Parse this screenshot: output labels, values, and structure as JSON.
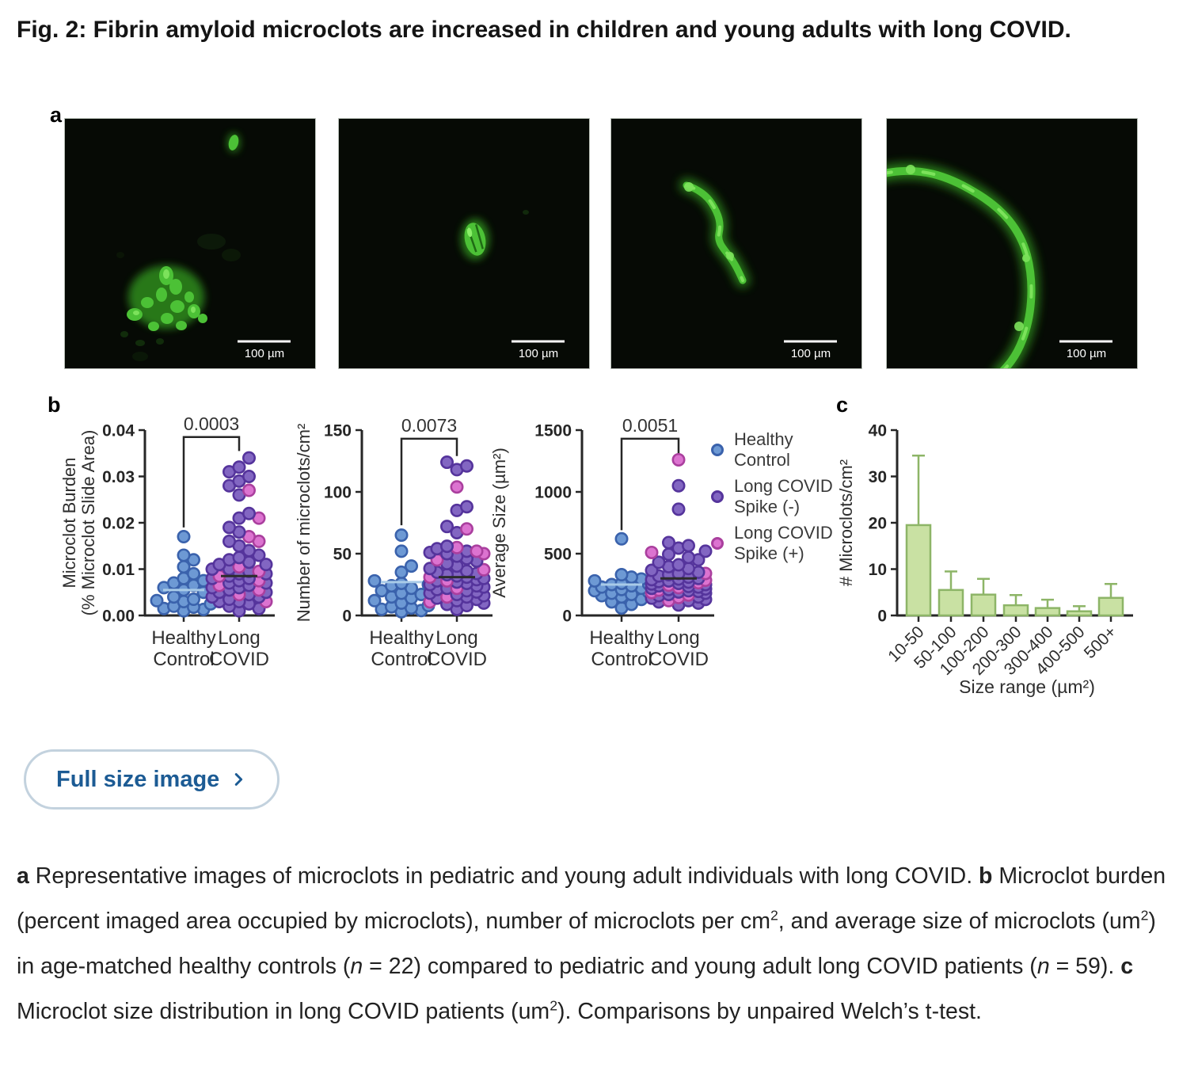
{
  "figure": {
    "title": "Fig. 2: Fibrin amyloid microclots are increased in children and young adults with long COVID.",
    "panel_labels": {
      "a": "a",
      "b": "b",
      "c": "c"
    },
    "scale_label": "100 µm",
    "button": {
      "label": "Full size image"
    },
    "legend": [
      {
        "group": "hc",
        "label_lines": [
          "Healthy",
          "Control"
        ]
      },
      {
        "group": "sn",
        "label_lines": [
          "Long COVID",
          "Spike (-)"
        ]
      },
      {
        "group": "sp",
        "label_lines": [
          "Long COVID",
          "Spike (+)"
        ]
      }
    ],
    "colors": {
      "hc_fill": "#6d99d4",
      "hc_stroke": "#3a62ac",
      "sn_fill": "#8266c2",
      "sn_stroke": "#55349c",
      "sp_fill": "#dc73d0",
      "sp_stroke": "#aa3f9e",
      "bar_fill": "#c9e1a3",
      "bar_stroke": "#8db567",
      "axis": "#262626",
      "mean_hc": "#a9cbe8",
      "mean_lc": "#2d2d2d",
      "accent_link": "#1c5b94",
      "button_border": "#c3d2de",
      "micro_green": "#4cc136"
    },
    "caption_segments": [
      {
        "t": "a",
        "b": 1
      },
      {
        "t": " Representative images of microclots in pediatric and young adult individuals with long COVID. "
      },
      {
        "t": "b",
        "b": 1
      },
      {
        "t": " Microclot burden (percent imaged area occupied by microclots), number of microclots per cm"
      },
      {
        "t": "2",
        "sup": 1
      },
      {
        "t": ", and average size of microclots (um"
      },
      {
        "t": "2",
        "sup": 1
      },
      {
        "t": ") in age-matched healthy controls ("
      },
      {
        "t": "n",
        "i": 1
      },
      {
        "t": " = 22) compared to pediatric and young adult long COVID patients ("
      },
      {
        "t": "n",
        "i": 1
      },
      {
        "t": " = 59). "
      },
      {
        "t": "c",
        "b": 1
      },
      {
        "t": " Microclot size distribution in long COVID patients (um"
      },
      {
        "t": "2",
        "sup": 1
      },
      {
        "t": "). Comparisons by unpaired Welch’s t-test."
      }
    ]
  },
  "chart_data": [
    {
      "type": "scatter",
      "p_value": "0.0003",
      "ylabel_lines": [
        "Microclot Burden",
        "(% Microclot Slide Area)"
      ],
      "ylim": [
        0,
        0.04
      ],
      "yticks": [
        0,
        0.01,
        0.02,
        0.03,
        0.04
      ],
      "ytick_labels": [
        "0.00",
        "0.01",
        "0.02",
        "0.03",
        "0.04"
      ],
      "categories": [
        [
          "Healthy",
          "Control"
        ],
        [
          "Long",
          "COVID"
        ]
      ],
      "n": {
        "healthy_control": 22,
        "long_covid": 59
      },
      "series": {
        "healthy_control": [
          0.001,
          0.0013,
          0.0015,
          0.0018,
          0.002,
          0.0025,
          0.003,
          0.0032,
          0.0035,
          0.004,
          0.005,
          0.0055,
          0.006,
          0.0065,
          0.007,
          0.0075,
          0.008,
          0.009,
          0.0105,
          0.012,
          0.013,
          0.017
        ],
        "long_covid_spike_neg": [
          0.001,
          0.0015,
          0.002,
          0.0025,
          0.003,
          0.003,
          0.0035,
          0.004,
          0.004,
          0.0045,
          0.005,
          0.005,
          0.0055,
          0.006,
          0.006,
          0.0065,
          0.007,
          0.007,
          0.0075,
          0.008,
          0.008,
          0.0085,
          0.009,
          0.009,
          0.0095,
          0.01,
          0.01,
          0.011,
          0.011,
          0.0115,
          0.012,
          0.0125,
          0.013,
          0.014,
          0.015,
          0.016,
          0.018,
          0.019,
          0.021,
          0.022,
          0.026,
          0.028,
          0.029,
          0.03,
          0.031,
          0.032,
          0.034
        ],
        "long_covid_spike_pos": [
          0.003,
          0.0045,
          0.0055,
          0.0065,
          0.0075,
          0.0085,
          0.0095,
          0.0105,
          0.016,
          0.017,
          0.021,
          0.027
        ]
      },
      "mean_lines": {
        "healthy": 0.0055,
        "long_covid": 0.0085
      },
      "bracket": {
        "top": 0.0385,
        "left_drop": 0.019,
        "right_drop": 0.0355
      }
    },
    {
      "type": "scatter",
      "p_value": "0.0073",
      "ylabel_lines": [
        "Number of microclots/cm²"
      ],
      "ylim": [
        0,
        150
      ],
      "yticks": [
        0,
        50,
        100,
        150
      ],
      "ytick_labels": [
        "0",
        "50",
        "100",
        "150"
      ],
      "categories": [
        [
          "Healthy",
          "Control"
        ],
        [
          "Long",
          "COVID"
        ]
      ],
      "series": {
        "healthy_control": [
          3,
          4,
          5,
          6,
          7,
          8,
          10,
          12,
          14,
          15,
          17,
          18,
          20,
          22,
          24,
          25,
          26,
          28,
          35,
          40,
          52,
          65
        ],
        "long_covid_spike_neg": [
          5,
          8,
          9,
          10,
          12,
          13,
          14,
          15,
          16,
          17,
          18,
          19,
          20,
          21,
          22,
          23,
          24,
          25,
          26,
          27,
          28,
          29,
          30,
          31,
          32,
          33,
          34,
          35,
          36,
          38,
          40,
          42,
          44,
          46,
          48,
          50,
          51,
          52,
          54,
          56,
          67,
          72,
          85,
          88,
          118,
          121,
          124
        ],
        "long_covid_spike_pos": [
          11,
          15,
          22,
          28,
          31,
          37,
          45,
          50,
          52,
          55,
          70,
          104
        ]
      },
      "mean_lines": {
        "healthy": 27,
        "long_covid": 31
      },
      "bracket": {
        "top": 143,
        "left_drop": 73,
        "right_drop": 129
      }
    },
    {
      "type": "scatter",
      "p_value": "0.0051",
      "ylabel_lines": [
        "Average Size (µm²)"
      ],
      "ylim": [
        0,
        1500
      ],
      "yticks": [
        0,
        500,
        1000,
        1500
      ],
      "ytick_labels": [
        "0",
        "500",
        "1000",
        "1500"
      ],
      "categories": [
        [
          "Healthy",
          "Control"
        ],
        [
          "Long",
          "COVID"
        ]
      ],
      "series": {
        "healthy_control": [
          60,
          90,
          110,
          130,
          150,
          160,
          170,
          180,
          190,
          200,
          210,
          220,
          230,
          240,
          250,
          255,
          260,
          280,
          295,
          310,
          330,
          620
        ],
        "long_covid_spike_neg": [
          85,
          100,
          110,
          120,
          130,
          140,
          150,
          160,
          170,
          180,
          190,
          195,
          200,
          210,
          215,
          220,
          230,
          235,
          240,
          250,
          255,
          260,
          270,
          275,
          280,
          290,
          295,
          300,
          310,
          320,
          330,
          340,
          350,
          365,
          380,
          395,
          410,
          430,
          450,
          470,
          495,
          520,
          545,
          565,
          590,
          860,
          1050
        ],
        "long_covid_spike_pos": [
          120,
          145,
          165,
          185,
          205,
          225,
          245,
          265,
          285,
          340,
          510,
          1260
        ]
      },
      "mean_lines": {
        "healthy": 250,
        "long_covid": 300
      },
      "bracket": {
        "top": 1430,
        "left_drop": 690,
        "right_drop": 1310
      }
    },
    {
      "type": "bar",
      "categories": [
        "10-50",
        "50-100",
        "100-200",
        "200-300",
        "300-400",
        "400-500",
        "500+"
      ],
      "values": [
        19.5,
        5.5,
        4.5,
        2.2,
        1.6,
        0.9,
        3.8
      ],
      "errors_up": [
        15,
        4,
        3.4,
        2.2,
        1.8,
        1.1,
        3.0
      ],
      "ylabel": "# Microclots/cm²",
      "xlabel": "Size range (µm²)",
      "ylim": [
        0,
        40
      ],
      "yticks": [
        0,
        10,
        20,
        30,
        40
      ],
      "ytick_labels": [
        "0",
        "10",
        "20",
        "30",
        "40"
      ]
    }
  ]
}
